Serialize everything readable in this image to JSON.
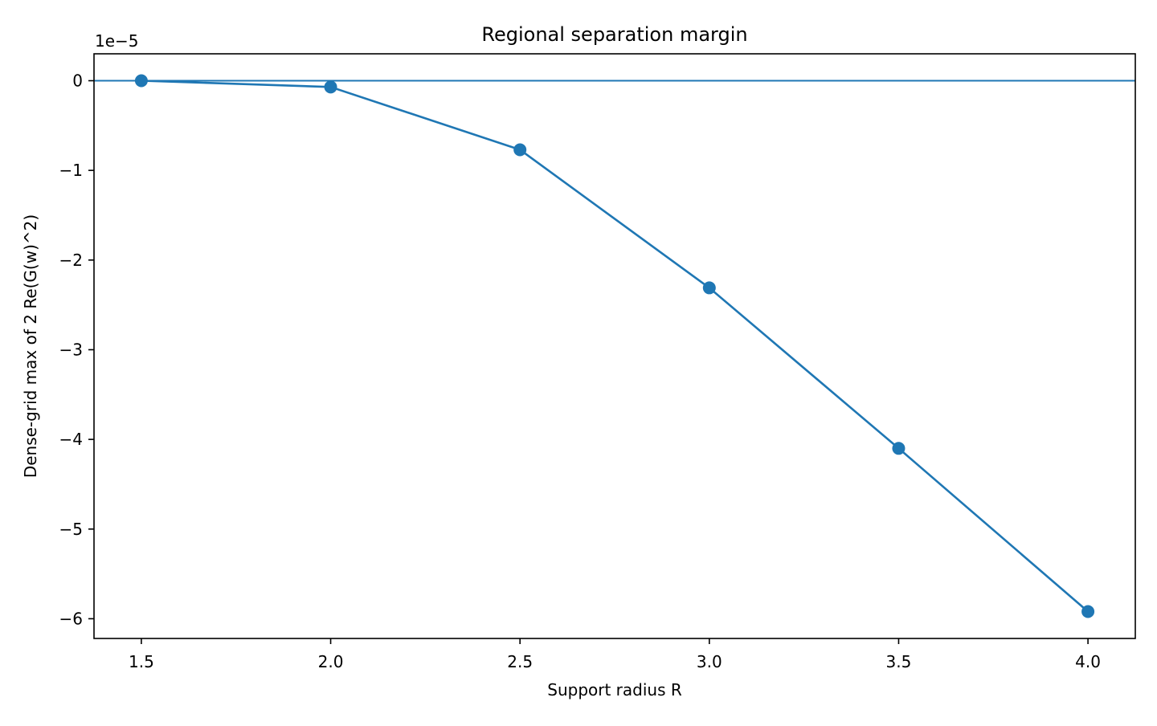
{
  "chart_data": {
    "type": "line",
    "title": "Regional separation margin",
    "xlabel": "Support radius R",
    "ylabel": "Dense-grid max of 2 Re(G(w)^2)",
    "y_offset_label": "1e−5",
    "y_scale_factor": 1e-05,
    "xlim": [
      1.375,
      4.125
    ],
    "ylim": [
      -6.22e-05,
      3e-06
    ],
    "x_ticks": [
      1.5,
      2.0,
      2.5,
      3.0,
      3.5,
      4.0
    ],
    "x_tick_labels": [
      "1.5",
      "2.0",
      "2.5",
      "3.0",
      "3.5",
      "4.0"
    ],
    "y_ticks": [
      0,
      -1,
      -2,
      -3,
      -4,
      -5,
      -6
    ],
    "y_tick_labels": [
      "0",
      "−1",
      "−2",
      "−3",
      "−4",
      "−5",
      "−6"
    ],
    "grid": false,
    "reference_line_y": 0,
    "colors": {
      "series": "#1f77b4",
      "axes": "#000000",
      "background": "#ffffff"
    },
    "series": [
      {
        "x": [
          1.5,
          2.0,
          2.5,
          3.0,
          3.5,
          4.0
        ],
        "y": [
          0.0,
          -7e-07,
          -7.7e-06,
          -2.31e-05,
          -4.1e-05,
          -5.92e-05
        ],
        "marker": "circle"
      }
    ]
  }
}
